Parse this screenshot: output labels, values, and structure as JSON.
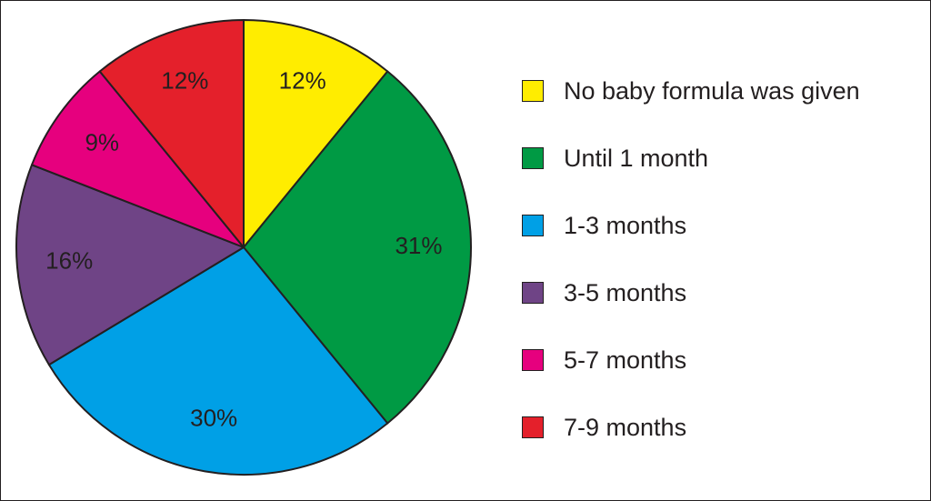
{
  "chart_data": {
    "type": "pie",
    "categories": [
      "No baby formula was given",
      "Until 1 month",
      "1-3 months",
      "3-5 months",
      "5-7 months",
      "7-9 months"
    ],
    "values": [
      12,
      31,
      30,
      16,
      9,
      12
    ],
    "labels": [
      "12%",
      "31%",
      "30%",
      "16%",
      "9%",
      "12%"
    ],
    "colors": [
      "#ffed00",
      "#009a44",
      "#00a0e6",
      "#6f4486",
      "#e6007e",
      "#e4202b"
    ],
    "label_colors": [
      "#231f20",
      "#231f20",
      "#231f20",
      "#ffffff",
      "#231f20",
      "#231f20"
    ],
    "start_angle_deg": 0,
    "direction": "clockwise",
    "legend_position": "right"
  }
}
